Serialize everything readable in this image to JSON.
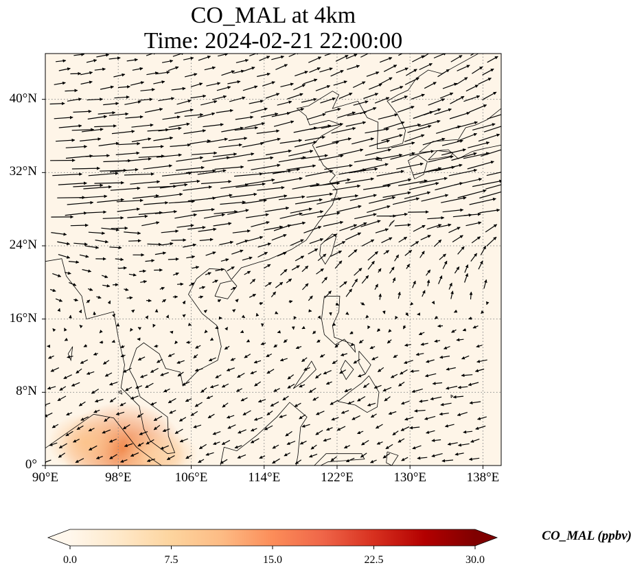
{
  "title": {
    "line1": "CO_MAL at 4km",
    "line2": "Time: 2024-02-21 22:00:00"
  },
  "map": {
    "extent": {
      "lon": [
        90,
        140
      ],
      "lat": [
        0,
        45
      ]
    },
    "lat_ticks": [
      {
        "value": 0,
        "label": "0°"
      },
      {
        "value": 8,
        "label": "8°N"
      },
      {
        "value": 16,
        "label": "16°N"
      },
      {
        "value": 24,
        "label": "24°N"
      },
      {
        "value": 32,
        "label": "32°N"
      },
      {
        "value": 40,
        "label": "40°N"
      }
    ],
    "lon_ticks": [
      {
        "value": 90,
        "label": "90°E"
      },
      {
        "value": 98,
        "label": "98°E"
      },
      {
        "value": 106,
        "label": "106°E"
      },
      {
        "value": 114,
        "label": "114°E"
      },
      {
        "value": 122,
        "label": "122°E"
      },
      {
        "value": 130,
        "label": "130°E"
      },
      {
        "value": 138,
        "label": "138°E"
      }
    ],
    "gridlines": true,
    "background_color": "#fef5e8",
    "field_hotspots": [
      {
        "lon": 98.5,
        "lat": 1.8,
        "value": 17,
        "color": "#ef7a3a"
      },
      {
        "lon": 94.5,
        "lat": 2.5,
        "value": 9,
        "color": "#fcc48c"
      },
      {
        "lon": 101.5,
        "lat": 0.8,
        "value": 8,
        "color": "#fdc996"
      },
      {
        "lon": 103.5,
        "lat": 1.2,
        "value": 6,
        "color": "#fdd7ac"
      }
    ]
  },
  "colorbar": {
    "title": "CO_MAL (ppbv)",
    "min": 0,
    "max": 30,
    "extend": "both",
    "ticks": [
      {
        "value": 0,
        "label": "0.0"
      },
      {
        "value": 7.5,
        "label": "7.5"
      },
      {
        "value": 15,
        "label": "15.0"
      },
      {
        "value": 22.5,
        "label": "22.5"
      },
      {
        "value": 30,
        "label": "30.0"
      }
    ],
    "colormap": [
      "#fff7ec",
      "#fee8c8",
      "#fdd49e",
      "#fdbb84",
      "#fc8d59",
      "#ef6548",
      "#d7301f",
      "#b30000",
      "#7f0000"
    ]
  }
}
